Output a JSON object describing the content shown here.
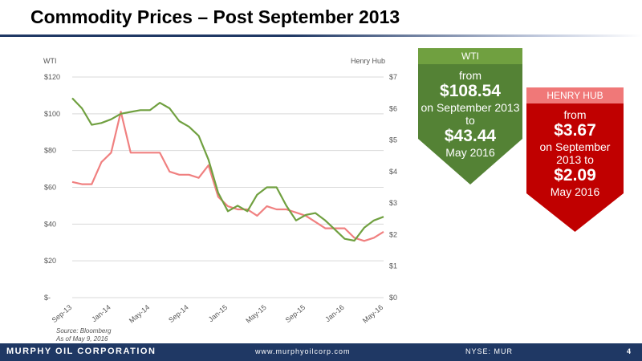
{
  "slide": {
    "title": "Commodity Prices – Post September 2013",
    "source": "Source: Bloomberg",
    "as_of": "As of May 9, 2016"
  },
  "wti_callout": {
    "header": "WTI",
    "from": "from",
    "start_value": "$108.54",
    "mid": "on September 2013 to",
    "end_value": "$43.44",
    "end_date": "May 2016",
    "color": "#548235"
  },
  "hh_callout": {
    "header": "HENRY HUB",
    "from": "from",
    "start_value": "$3.67",
    "mid": "on September 2013 to",
    "end_value": "$2.09",
    "end_date": "May 2016",
    "color": "#c00000"
  },
  "footer": {
    "company": "MURPHY OIL CORPORATION",
    "website": "www.murphyoilcorp.com",
    "ticker": "NYSE: MUR",
    "page": "4"
  },
  "chart_data": {
    "type": "line",
    "y_left_label": "WTI",
    "y_right_label": "Henry Hub",
    "y_left_range": [
      0,
      120
    ],
    "y_right_range": [
      0,
      7
    ],
    "y_left_ticks": [
      "$-",
      "$20",
      "$40",
      "$60",
      "$80",
      "$100",
      "$120"
    ],
    "y_right_ticks": [
      "$0",
      "$1",
      "$2",
      "$3",
      "$4",
      "$5",
      "$6",
      "$7"
    ],
    "x_ticks": [
      "Sep-13",
      "Jan-14",
      "May-14",
      "Sep-14",
      "Jan-15",
      "May-15",
      "Sep-15",
      "Jan-16",
      "May-16"
    ],
    "grid": true,
    "series": [
      {
        "name": "WTI",
        "axis": "left",
        "color": "#70a040",
        "x": [
          "2013-09",
          "2013-10",
          "2013-11",
          "2013-12",
          "2014-01",
          "2014-02",
          "2014-03",
          "2014-04",
          "2014-05",
          "2014-06",
          "2014-07",
          "2014-08",
          "2014-09",
          "2014-10",
          "2014-11",
          "2014-12",
          "2015-01",
          "2015-02",
          "2015-03",
          "2015-04",
          "2015-05",
          "2015-06",
          "2015-07",
          "2015-08",
          "2015-09",
          "2015-10",
          "2015-11",
          "2015-12",
          "2016-01",
          "2016-02",
          "2016-03",
          "2016-04",
          "2016-05"
        ],
        "values": [
          108.5,
          103,
          94,
          95,
          97,
          100,
          101,
          102,
          102,
          106,
          103,
          96,
          93,
          88,
          75,
          57,
          47,
          50,
          47,
          56,
          60,
          60,
          50,
          42,
          45,
          46,
          42,
          37,
          32,
          31,
          38,
          42,
          44
        ]
      },
      {
        "name": "Henry Hub",
        "axis": "right",
        "color": "#f08080",
        "x": [
          "2013-09",
          "2013-10",
          "2013-11",
          "2013-12",
          "2014-01",
          "2014-02",
          "2014-03",
          "2014-04",
          "2014-05",
          "2014-06",
          "2014-07",
          "2014-08",
          "2014-09",
          "2014-10",
          "2014-11",
          "2014-12",
          "2015-01",
          "2015-02",
          "2015-03",
          "2015-04",
          "2015-05",
          "2015-06",
          "2015-07",
          "2015-08",
          "2015-09",
          "2015-10",
          "2015-11",
          "2015-12",
          "2016-01",
          "2016-02",
          "2016-03",
          "2016-04",
          "2016-05"
        ],
        "values": [
          3.67,
          3.6,
          3.6,
          4.3,
          4.6,
          5.9,
          4.6,
          4.6,
          4.6,
          4.6,
          4.0,
          3.9,
          3.9,
          3.8,
          4.2,
          3.2,
          2.9,
          2.8,
          2.8,
          2.6,
          2.9,
          2.8,
          2.8,
          2.7,
          2.6,
          2.4,
          2.2,
          2.2,
          2.2,
          1.9,
          1.8,
          1.9,
          2.09
        ]
      }
    ]
  }
}
